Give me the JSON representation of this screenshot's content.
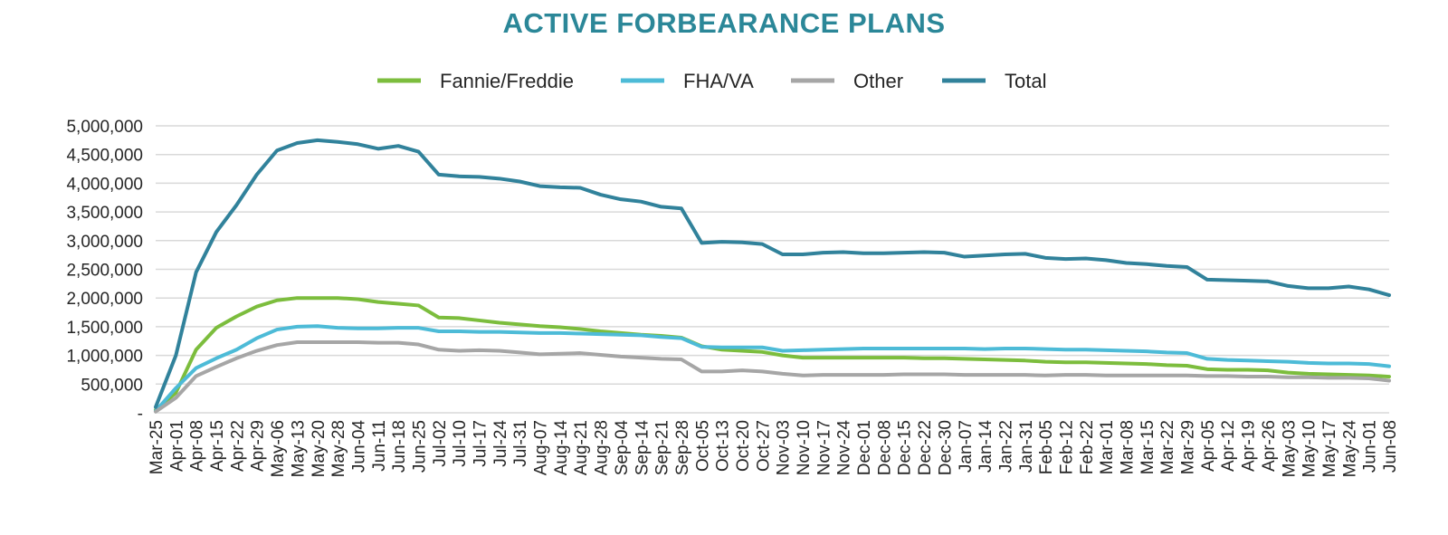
{
  "chart_data": {
    "type": "line",
    "title": "ACTIVE FORBEARANCE PLANS",
    "xlabel": "",
    "ylabel": "",
    "ylim": [
      0,
      5000000
    ],
    "yticks": [
      {
        "value": 0,
        "label": "-"
      },
      {
        "value": 500000,
        "label": "500,000"
      },
      {
        "value": 1000000,
        "label": "1,000,000"
      },
      {
        "value": 1500000,
        "label": "1,500,000"
      },
      {
        "value": 2000000,
        "label": "2,000,000"
      },
      {
        "value": 2500000,
        "label": "2,500,000"
      },
      {
        "value": 3000000,
        "label": "3,000,000"
      },
      {
        "value": 3500000,
        "label": "3,500,000"
      },
      {
        "value": 4000000,
        "label": "4,000,000"
      },
      {
        "value": 4500000,
        "label": "4,500,000"
      },
      {
        "value": 5000000,
        "label": "5,000,000"
      }
    ],
    "categories": [
      "Mar-25",
      "Apr-01",
      "Apr-08",
      "Apr-15",
      "Apr-22",
      "Apr-29",
      "May-06",
      "May-13",
      "May-20",
      "May-28",
      "Jun-04",
      "Jun-11",
      "Jun-18",
      "Jun-25",
      "Jul-02",
      "Jul-10",
      "Jul-17",
      "Jul-24",
      "Jul-31",
      "Aug-07",
      "Aug-14",
      "Aug-21",
      "Aug-28",
      "Sep-04",
      "Sep-14",
      "Sep-21",
      "Sep-28",
      "Oct-05",
      "Oct-13",
      "Oct-20",
      "Oct-27",
      "Nov-03",
      "Nov-10",
      "Nov-17",
      "Nov-24",
      "Dec-01",
      "Dec-08",
      "Dec-15",
      "Dec-22",
      "Dec-30",
      "Jan-07",
      "Jan-14",
      "Jan-22",
      "Jan-31",
      "Feb-05",
      "Feb-12",
      "Feb-22",
      "Mar-01",
      "Mar-08",
      "Mar-15",
      "Mar-22",
      "Mar-29",
      "Apr-05",
      "Apr-12",
      "Apr-19",
      "Apr-26",
      "May-03",
      "May-10",
      "May-17",
      "May-24",
      "Jun-01",
      "Jun-08"
    ],
    "grid": true,
    "legend_position": "top",
    "series": [
      {
        "name": "Fannie/Freddie",
        "color": "#7cbd3d",
        "values": [
          50000,
          350000,
          1100000,
          1480000,
          1680000,
          1850000,
          1960000,
          2000000,
          2000000,
          2000000,
          1980000,
          1930000,
          1900000,
          1870000,
          1660000,
          1650000,
          1610000,
          1570000,
          1540000,
          1510000,
          1490000,
          1460000,
          1420000,
          1390000,
          1360000,
          1340000,
          1310000,
          1160000,
          1100000,
          1080000,
          1060000,
          1000000,
          960000,
          960000,
          960000,
          960000,
          960000,
          960000,
          950000,
          950000,
          940000,
          930000,
          920000,
          910000,
          890000,
          880000,
          880000,
          870000,
          860000,
          850000,
          830000,
          820000,
          760000,
          750000,
          750000,
          740000,
          700000,
          680000,
          670000,
          660000,
          650000,
          630000
        ]
      },
      {
        "name": "FHA/VA",
        "color": "#4dbbd7",
        "values": [
          30000,
          430000,
          780000,
          950000,
          1100000,
          1300000,
          1450000,
          1500000,
          1510000,
          1480000,
          1470000,
          1470000,
          1480000,
          1480000,
          1420000,
          1420000,
          1410000,
          1410000,
          1400000,
          1390000,
          1390000,
          1380000,
          1370000,
          1360000,
          1350000,
          1320000,
          1300000,
          1150000,
          1140000,
          1140000,
          1140000,
          1080000,
          1090000,
          1100000,
          1110000,
          1120000,
          1120000,
          1120000,
          1120000,
          1120000,
          1120000,
          1110000,
          1120000,
          1120000,
          1110000,
          1100000,
          1100000,
          1090000,
          1080000,
          1070000,
          1050000,
          1040000,
          940000,
          920000,
          910000,
          900000,
          890000,
          870000,
          860000,
          860000,
          850000,
          810000
        ]
      },
      {
        "name": "Other",
        "color": "#a6a6a6",
        "values": [
          20000,
          260000,
          640000,
          800000,
          950000,
          1080000,
          1180000,
          1230000,
          1230000,
          1230000,
          1230000,
          1220000,
          1220000,
          1190000,
          1100000,
          1080000,
          1090000,
          1080000,
          1050000,
          1020000,
          1030000,
          1040000,
          1010000,
          980000,
          960000,
          940000,
          930000,
          720000,
          720000,
          740000,
          720000,
          680000,
          650000,
          660000,
          660000,
          660000,
          660000,
          670000,
          670000,
          670000,
          660000,
          660000,
          660000,
          660000,
          650000,
          660000,
          660000,
          650000,
          650000,
          650000,
          650000,
          650000,
          640000,
          640000,
          630000,
          630000,
          620000,
          620000,
          610000,
          610000,
          600000,
          560000
        ]
      },
      {
        "name": "Total",
        "color": "#31829b",
        "values": [
          100000,
          1000000,
          2450000,
          3150000,
          3620000,
          4150000,
          4570000,
          4700000,
          4750000,
          4720000,
          4680000,
          4600000,
          4650000,
          4550000,
          4150000,
          4120000,
          4110000,
          4080000,
          4030000,
          3950000,
          3930000,
          3920000,
          3800000,
          3720000,
          3680000,
          3590000,
          3560000,
          2960000,
          2980000,
          2970000,
          2940000,
          2760000,
          2760000,
          2790000,
          2800000,
          2780000,
          2780000,
          2790000,
          2800000,
          2790000,
          2720000,
          2740000,
          2760000,
          2770000,
          2700000,
          2680000,
          2690000,
          2660000,
          2610000,
          2590000,
          2560000,
          2540000,
          2320000,
          2310000,
          2300000,
          2290000,
          2210000,
          2170000,
          2170000,
          2200000,
          2150000,
          2050000
        ]
      }
    ]
  }
}
